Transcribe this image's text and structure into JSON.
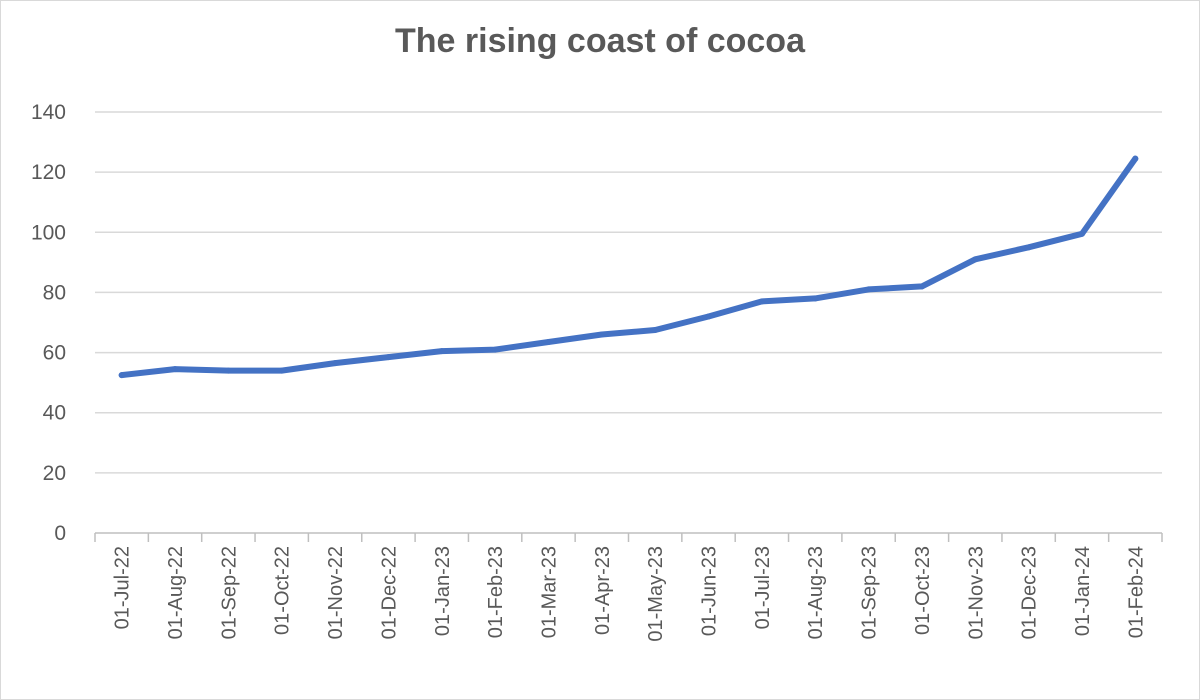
{
  "chart_data": {
    "type": "line",
    "title": "The rising coast of cocoa",
    "xlabel": "",
    "ylabel": "",
    "ylim": [
      0,
      140
    ],
    "yticks": [
      0,
      20,
      40,
      60,
      80,
      100,
      120,
      140
    ],
    "grid": true,
    "legend": "none",
    "line_color": "#4472C4",
    "categories": [
      "01-Jul-22",
      "01-Aug-22",
      "01-Sep-22",
      "01-Oct-22",
      "01-Nov-22",
      "01-Dec-22",
      "01-Jan-23",
      "01-Feb-23",
      "01-Mar-23",
      "01-Apr-23",
      "01-May-23",
      "01-Jun-23",
      "01-Jul-23",
      "01-Aug-23",
      "01-Sep-23",
      "01-Oct-23",
      "01-Nov-23",
      "01-Dec-23",
      "01-Jan-24",
      "01-Feb-24"
    ],
    "values": [
      52.5,
      54.5,
      54,
      54,
      56.5,
      58.5,
      60.5,
      61,
      63.5,
      66,
      67.5,
      72,
      77,
      78,
      81,
      82,
      91,
      95,
      99.5,
      124.5
    ]
  }
}
